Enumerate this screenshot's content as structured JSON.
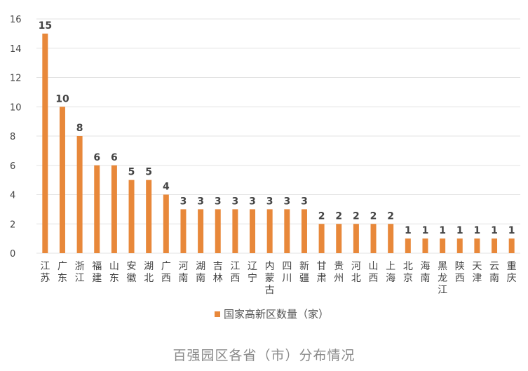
{
  "chart_data": {
    "type": "bar",
    "categories": [
      "江苏",
      "广东",
      "浙江",
      "福建",
      "山东",
      "安徽",
      "湖北",
      "广西",
      "河南",
      "湖南",
      "吉林",
      "江西",
      "辽宁",
      "内蒙古",
      "四川",
      "新疆",
      "甘肃",
      "贵州",
      "河北",
      "山西",
      "上海",
      "北京",
      "海南",
      "黑龙江",
      "陕西",
      "天津",
      "云南",
      "重庆"
    ],
    "series": [
      {
        "name": "国家高新区数量（家）",
        "values": [
          15,
          10,
          8,
          6,
          6,
          5,
          5,
          4,
          3,
          3,
          3,
          3,
          3,
          3,
          3,
          3,
          2,
          2,
          2,
          2,
          2,
          1,
          1,
          1,
          1,
          1,
          1,
          1
        ]
      }
    ],
    "ylim": [
      0,
      16
    ],
    "yticks": [
      0,
      2,
      4,
      6,
      8,
      10,
      12,
      14,
      16
    ],
    "grid": true,
    "legend_position": "bottom",
    "colors": {
      "bar": "#E8883A",
      "grid": "#E3E3E3"
    }
  },
  "caption": "百强园区各省（市）分布情况"
}
